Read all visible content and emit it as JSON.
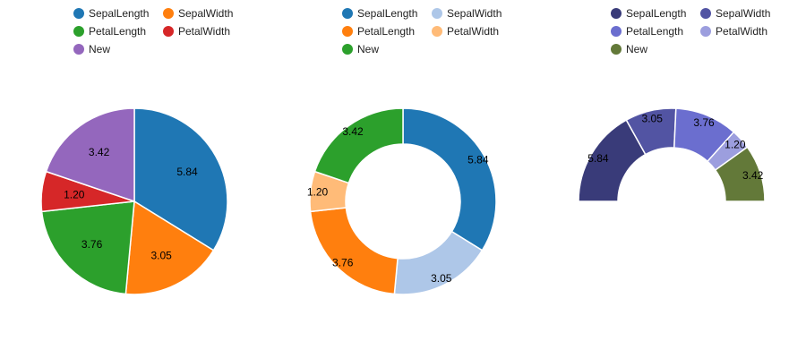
{
  "chart_data": [
    {
      "type": "pie",
      "variant": "pie",
      "categories": [
        "SepalLength",
        "SepalWidth",
        "PetalLength",
        "PetalWidth",
        "New"
      ],
      "values": [
        5.84,
        3.05,
        3.76,
        1.2,
        3.42
      ],
      "labels": [
        "5.84",
        "3.05",
        "3.76",
        "1.20",
        "3.42"
      ],
      "colors": [
        "#1f77b4",
        "#ff7f0e",
        "#2ca02c",
        "#d62728",
        "#9467bd"
      ],
      "legend_position": "top"
    },
    {
      "type": "pie",
      "variant": "donut",
      "categories": [
        "SepalLength",
        "SepalWidth",
        "PetalLength",
        "PetalWidth",
        "New"
      ],
      "values": [
        5.84,
        3.05,
        3.76,
        1.2,
        3.42
      ],
      "labels": [
        "5.84",
        "3.05",
        "3.76",
        "1.20",
        "3.42"
      ],
      "colors": [
        "#1f77b4",
        "#aec7e8",
        "#ff7f0e",
        "#ffbb78",
        "#2ca02c"
      ],
      "legend_position": "top"
    },
    {
      "type": "pie",
      "variant": "half-donut",
      "categories": [
        "SepalLength",
        "SepalWidth",
        "PetalLength",
        "PetalWidth",
        "New"
      ],
      "values": [
        5.84,
        3.05,
        3.76,
        1.2,
        3.42
      ],
      "labels": [
        "5.84",
        "3.05",
        "3.76",
        "1.20",
        "3.42"
      ],
      "colors": [
        "#393b79",
        "#5254a3",
        "#6b6ecf",
        "#9c9ede",
        "#637939"
      ],
      "legend_position": "top"
    }
  ]
}
